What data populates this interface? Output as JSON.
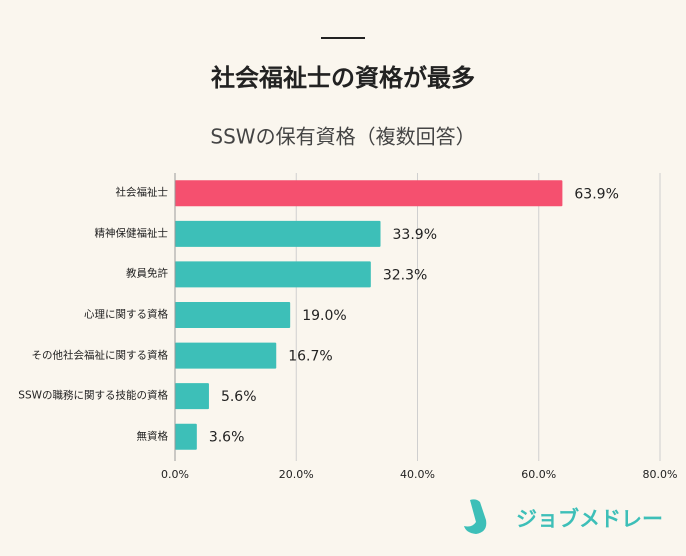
{
  "header": {
    "title": "社会福祉士の資格が最多"
  },
  "chart_data": {
    "type": "bar",
    "orientation": "horizontal",
    "title": "SSWの保有資格（複数回答）",
    "categories": [
      "社会福祉士",
      "精神保健福祉士",
      "教員免許",
      "心理に関する資格",
      "その他社会福祉に関する資格",
      "SSWの職務に関する技能の資格",
      "無資格"
    ],
    "values": [
      63.9,
      33.9,
      32.3,
      19.0,
      16.7,
      5.6,
      3.6
    ],
    "value_labels": [
      "63.9%",
      "33.9%",
      "32.3%",
      "19.0%",
      "16.7%",
      "5.6%",
      "3.6%"
    ],
    "colors": [
      "#f5506f",
      "#3dbfb8",
      "#3dbfb8",
      "#3dbfb8",
      "#3dbfb8",
      "#3dbfb8",
      "#3dbfb8"
    ],
    "xlim": [
      0,
      80
    ],
    "xticks": [
      {
        "value": 0,
        "label": "0.0%"
      },
      {
        "value": 20,
        "label": "20.0%"
      },
      {
        "value": 40,
        "label": "40.0%"
      },
      {
        "value": 60,
        "label": "60.0%"
      },
      {
        "value": 80,
        "label": "80.0%"
      }
    ],
    "grid": true
  },
  "logo": {
    "text": "ジョブメドレー"
  }
}
